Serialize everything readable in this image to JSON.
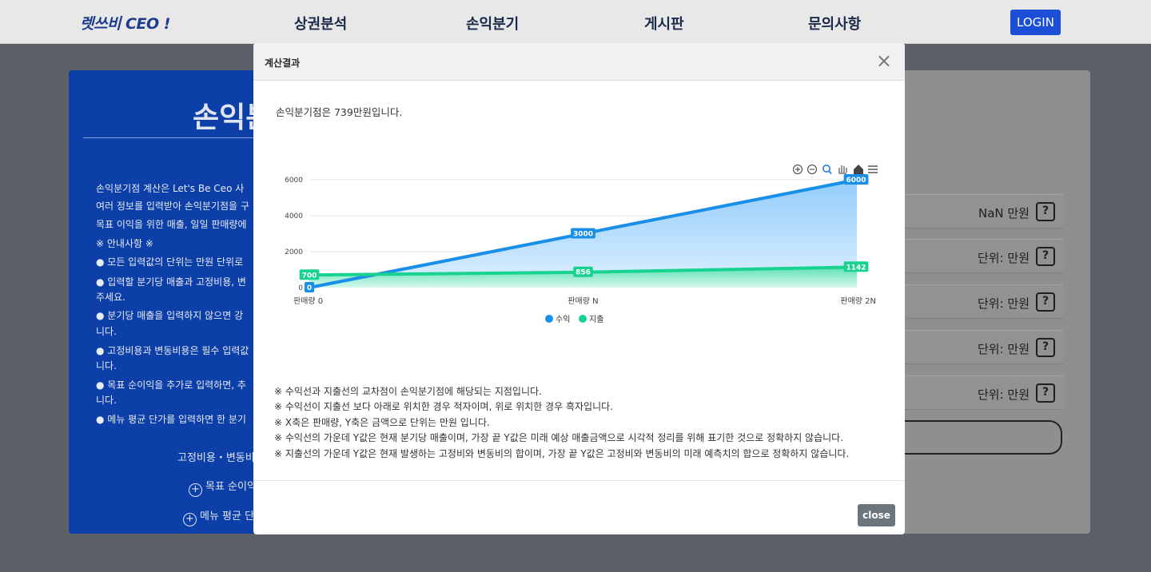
{
  "nav": {
    "logo": "렛쓰비 CEO !",
    "items": [
      "상권분석",
      "손익분기",
      "게시판",
      "문의사항"
    ],
    "login_label": "LOGIN"
  },
  "left_panel": {
    "title": "손익분",
    "lines": [
      "손익분기점 계산은 Let's Be Ceo 사",
      "여러 정보를 입력받아 손익분기점을 구",
      "목표 이익을 위한 매출, 일일 판매량에",
      "※ 안내사항 ※",
      "● 모든 입력값의 단위는 만원 단위로",
      "● 입력할 분기당 매출과 고정비용, 변",
      "주세요.",
      "● 분기당 매출을 입력하지 않으면 강",
      "니다.",
      "● 고정비용과 변동비용은 필수 입력값",
      "니다.",
      "● 목표 순이익을 추가로 입력하면, 추",
      "니다.",
      "● 메뉴 평균 단가를 입력하면 한 분기"
    ],
    "cost_label": "고정비용・변동비",
    "target_profit_label": "목표 순이익",
    "menu_price_label": "메뉴 평균 단"
  },
  "right_panel": {
    "rows": [
      "NaN 만원",
      "단위: 만원",
      "단위: 만원",
      "단위: 만원",
      "단위: 만원"
    ],
    "help_label": "?"
  },
  "modal": {
    "title": "계산결과",
    "close_x": "×",
    "result_text": "손익분기점은 739만원입니다.",
    "notes": [
      "※ 수익선과 지출선의 교차점이 손익분기점에 해당되는 지점입니다.",
      "※ 수익선이 지출선 보다 아래로 위치한 경우 적자이며, 위로 위치한 경우 흑자입니다.",
      "※ X축은 판매량, Y축은 금액으로 단위는 만원 입니다.",
      "※ 수익선의 가운데 Y값은 현재 분기당 매출이며, 가장 끝 Y값은 미래 예상 매출금액으로 시각적 정리를 위해 표기한 것으로 정확하지 않습니다.",
      "※ 지출선의 가운데 Y값은 현재 발생하는 고정비와 변동비의 합이며, 가장 끝 Y값은 고정비와 변동비의 미래 예측치의 합으로 정확하지 않습니다."
    ],
    "close_button": "close"
  },
  "chart_data": {
    "type": "area",
    "categories": [
      "판매량 0",
      "판매량 N",
      "판매량 2N"
    ],
    "series": [
      {
        "name": "수익",
        "values": [
          0,
          3000,
          6000
        ],
        "color": "#1a8fe8"
      },
      {
        "name": "지출",
        "values": [
          700,
          856,
          1142
        ],
        "color": "#17d38f"
      }
    ],
    "yticks": [
      0,
      2000,
      4000,
      6000
    ],
    "ylim": [
      0,
      6000
    ],
    "legend": "bottom",
    "grid": true,
    "toolbar_icons": [
      "zoom-in-icon",
      "zoom-out-icon",
      "zoom-select-icon",
      "pan-icon",
      "home-icon",
      "menu-icon"
    ]
  }
}
